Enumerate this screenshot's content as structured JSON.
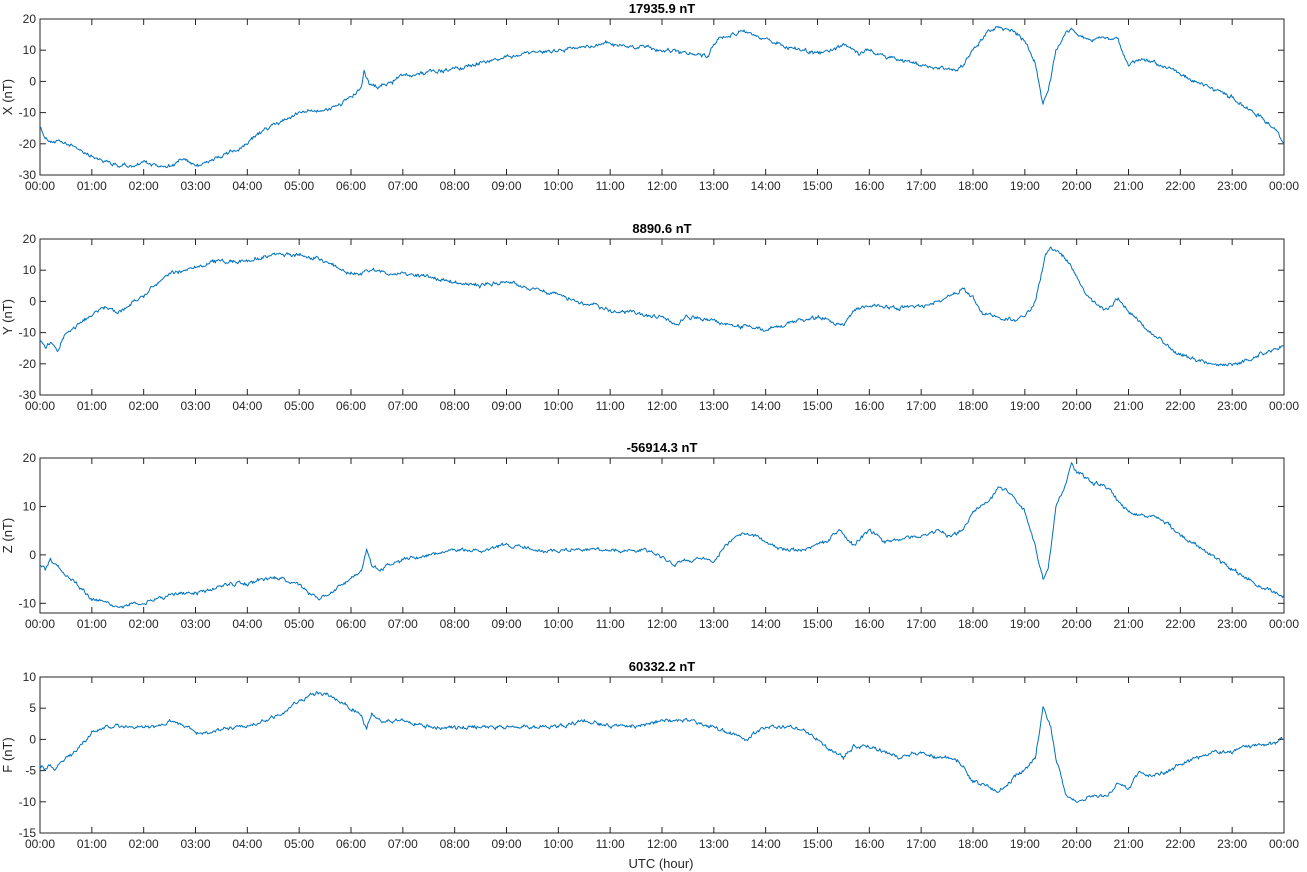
{
  "figure": {
    "xlabel": "UTC (hour)"
  },
  "chart_data": [
    {
      "type": "line",
      "title": "17935.9 nT",
      "ylabel": "X (nT)",
      "xlabel": "",
      "xlim": [
        0,
        24
      ],
      "ylim": [
        -30,
        20
      ],
      "yticks": [
        -30,
        -20,
        -10,
        0,
        10,
        20
      ],
      "xtick_labels": [
        "00:00",
        "01:00",
        "02:00",
        "03:00",
        "04:00",
        "05:00",
        "06:00",
        "07:00",
        "08:00",
        "09:00",
        "10:00",
        "11:00",
        "12:00",
        "13:00",
        "14:00",
        "15:00",
        "16:00",
        "17:00",
        "18:00",
        "19:00",
        "20:00",
        "21:00",
        "22:00",
        "23:00",
        "00:00"
      ],
      "color": "#0072BD",
      "grid": false,
      "series": [
        {
          "x": [
            0,
            0.1,
            0.2,
            0.3,
            0.5,
            0.8,
            1.0,
            1.2,
            1.5,
            1.8,
            2.0,
            2.2,
            2.5,
            2.8,
            3.0,
            3.2,
            3.5,
            3.8,
            4.0,
            4.2,
            4.5,
            4.8,
            5.0,
            5.2,
            5.5,
            5.8,
            6.0,
            6.2,
            6.25,
            6.35,
            6.5,
            6.8,
            7.0,
            7.5,
            8.0,
            8.5,
            8.8,
            9.0,
            9.2,
            9.5,
            10.0,
            10.5,
            10.8,
            11.0,
            11.3,
            11.6,
            12.0,
            12.3,
            12.6,
            12.9,
            13.0,
            13.1,
            13.3,
            13.6,
            13.8,
            14.0,
            14.3,
            14.6,
            15.0,
            15.3,
            15.5,
            15.6,
            15.8,
            16.0,
            16.3,
            16.6,
            17.0,
            17.3,
            17.6,
            17.8,
            18.0,
            18.3,
            18.5,
            18.8,
            19.0,
            19.2,
            19.35,
            19.45,
            19.6,
            19.8,
            19.9,
            20.0,
            20.3,
            20.6,
            20.8,
            21.0,
            21.2,
            21.5,
            21.8,
            22.0,
            22.3,
            22.6,
            23.0,
            23.3,
            23.6,
            23.9,
            24.0
          ],
          "y": [
            -14,
            -18,
            -19,
            -19.5,
            -20,
            -22,
            -24,
            -25,
            -27,
            -27,
            -26,
            -27,
            -27,
            -25,
            -27,
            -26,
            -24,
            -22,
            -20,
            -17,
            -14,
            -12,
            -10,
            -9,
            -9.5,
            -7,
            -5,
            -2,
            3,
            -1,
            -2,
            0,
            2,
            3,
            4,
            6,
            7,
            8,
            8,
            9,
            10,
            11,
            12,
            12,
            11,
            11,
            10,
            9,
            9,
            8,
            12,
            14,
            15,
            16,
            15,
            13,
            12,
            10,
            9,
            10,
            12,
            11,
            9,
            10,
            8,
            7,
            5,
            4,
            4,
            5,
            10,
            16,
            17,
            16,
            13,
            6,
            -7,
            -3,
            10,
            16,
            17,
            15,
            13,
            14,
            13,
            5,
            7,
            6,
            4,
            2,
            0,
            -2,
            -5,
            -9,
            -12,
            -17,
            -20
          ]
        }
      ]
    },
    {
      "type": "line",
      "title": "8890.6 nT",
      "ylabel": "Y (nT)",
      "xlabel": "",
      "xlim": [
        0,
        24
      ],
      "ylim": [
        -30,
        20
      ],
      "yticks": [
        -30,
        -20,
        -10,
        0,
        10,
        20
      ],
      "xtick_labels": [
        "00:00",
        "01:00",
        "02:00",
        "03:00",
        "04:00",
        "05:00",
        "06:00",
        "07:00",
        "08:00",
        "09:00",
        "10:00",
        "11:00",
        "12:00",
        "13:00",
        "14:00",
        "15:00",
        "16:00",
        "17:00",
        "18:00",
        "19:00",
        "20:00",
        "21:00",
        "22:00",
        "23:00",
        "00:00"
      ],
      "color": "#0072BD",
      "grid": false,
      "series": [
        {
          "x": [
            0,
            0.1,
            0.2,
            0.35,
            0.5,
            0.7,
            1.0,
            1.2,
            1.4,
            1.5,
            1.8,
            2.0,
            2.2,
            2.5,
            3.0,
            3.5,
            4.0,
            4.3,
            4.5,
            4.8,
            5.0,
            5.3,
            5.6,
            6.0,
            6.2,
            6.4,
            6.6,
            7.0,
            7.5,
            8.0,
            8.5,
            8.8,
            9.0,
            9.5,
            10.0,
            10.5,
            11.0,
            11.5,
            12.0,
            12.3,
            12.5,
            12.8,
            13.0,
            13.3,
            13.6,
            14.0,
            14.3,
            14.6,
            15.0,
            15.3,
            15.5,
            15.7,
            16.0,
            16.3,
            16.6,
            17.0,
            17.3,
            17.6,
            17.8,
            18.0,
            18.2,
            18.5,
            18.8,
            19.0,
            19.2,
            19.4,
            19.5,
            19.7,
            19.9,
            20.1,
            20.3,
            20.6,
            20.8,
            21.0,
            21.2,
            21.4,
            21.6,
            21.8,
            22.0,
            22.3,
            22.6,
            22.9,
            23.1,
            23.4,
            23.7,
            24.0
          ],
          "y": [
            -12,
            -15,
            -13,
            -16,
            -10,
            -8,
            -4,
            -2,
            -3,
            -4,
            0,
            2,
            5,
            9,
            11,
            13,
            13,
            14,
            15,
            15,
            15,
            14,
            12,
            9,
            9,
            10,
            9,
            9,
            8,
            6,
            5,
            6,
            6,
            4,
            2,
            -1,
            -3,
            -4,
            -5,
            -7,
            -5,
            -6,
            -6,
            -8,
            -8,
            -9,
            -8,
            -6,
            -5,
            -7,
            -8,
            -3,
            -1,
            -2,
            -2,
            -2,
            0,
            2,
            4,
            1,
            -4,
            -5,
            -6,
            -5,
            0,
            15,
            17,
            15,
            11,
            5,
            0,
            -3,
            1,
            -3,
            -6,
            -10,
            -12,
            -15,
            -17,
            -19,
            -20,
            -20,
            -20,
            -18,
            -16,
            -14
          ]
        }
      ]
    },
    {
      "type": "line",
      "title": "-56914.3 nT",
      "ylabel": "Z (nT)",
      "xlabel": "",
      "xlim": [
        0,
        24
      ],
      "ylim": [
        -12,
        20
      ],
      "yticks": [
        -10,
        0,
        10,
        20
      ],
      "xtick_labels": [
        "00:00",
        "01:00",
        "02:00",
        "03:00",
        "04:00",
        "05:00",
        "06:00",
        "07:00",
        "08:00",
        "09:00",
        "10:00",
        "11:00",
        "12:00",
        "13:00",
        "14:00",
        "15:00",
        "16:00",
        "17:00",
        "18:00",
        "19:00",
        "20:00",
        "21:00",
        "22:00",
        "23:00",
        "00:00"
      ],
      "color": "#0072BD",
      "grid": false,
      "series": [
        {
          "x": [
            0,
            0.1,
            0.2,
            0.4,
            0.6,
            0.8,
            1.0,
            1.3,
            1.5,
            1.8,
            2.0,
            2.3,
            2.6,
            3.0,
            3.3,
            3.6,
            4.0,
            4.3,
            4.6,
            5.0,
            5.2,
            5.4,
            5.6,
            5.8,
            6.0,
            6.2,
            6.3,
            6.4,
            6.6,
            7.0,
            7.5,
            8.0,
            8.5,
            9.0,
            9.5,
            10.0,
            10.5,
            11.0,
            11.3,
            11.6,
            12.0,
            12.2,
            12.5,
            12.8,
            13.0,
            13.2,
            13.5,
            13.8,
            14.0,
            14.3,
            14.6,
            15.0,
            15.2,
            15.4,
            15.5,
            15.7,
            15.9,
            16.0,
            16.3,
            16.6,
            17.0,
            17.3,
            17.6,
            17.8,
            18.0,
            18.3,
            18.5,
            18.8,
            19.0,
            19.2,
            19.35,
            19.45,
            19.6,
            19.8,
            19.9,
            20.0,
            20.3,
            20.6,
            20.8,
            21.0,
            21.2,
            21.5,
            21.8,
            22.0,
            22.3,
            22.6,
            23.0,
            23.3,
            23.6,
            23.9,
            24.0
          ],
          "y": [
            -2,
            -3,
            -1,
            -3,
            -5,
            -7,
            -9,
            -10,
            -11,
            -10,
            -10,
            -9,
            -8,
            -8,
            -7,
            -6,
            -6,
            -5,
            -5,
            -6,
            -8,
            -9,
            -8,
            -6,
            -5,
            -3,
            1,
            -2,
            -3,
            -1,
            0,
            1,
            1,
            2,
            1,
            1,
            1,
            1,
            1,
            1,
            0,
            -2,
            -1,
            -1,
            -2,
            2,
            4,
            4,
            3,
            1,
            1,
            2,
            3,
            5,
            4,
            2,
            4,
            5,
            3,
            3,
            4,
            5,
            4,
            5,
            9,
            11,
            14,
            12,
            9,
            2,
            -5,
            -3,
            10,
            15,
            19,
            17,
            15,
            14,
            11,
            9,
            8,
            8,
            6,
            4,
            2,
            0,
            -3,
            -5,
            -7,
            -8,
            -9
          ]
        }
      ]
    },
    {
      "type": "line",
      "title": "60332.2 nT",
      "ylabel": "F (nT)",
      "xlabel": "UTC (hour)",
      "xlim": [
        0,
        24
      ],
      "ylim": [
        -15,
        10
      ],
      "yticks": [
        -15,
        -10,
        -5,
        0,
        5,
        10
      ],
      "xtick_labels": [
        "00:00",
        "01:00",
        "02:00",
        "03:00",
        "04:00",
        "05:00",
        "06:00",
        "07:00",
        "08:00",
        "09:00",
        "10:00",
        "11:00",
        "12:00",
        "13:00",
        "14:00",
        "15:00",
        "16:00",
        "17:00",
        "18:00",
        "19:00",
        "20:00",
        "21:00",
        "22:00",
        "23:00",
        "00:00"
      ],
      "color": "#0072BD",
      "grid": false,
      "series": [
        {
          "x": [
            0,
            0.1,
            0.2,
            0.3,
            0.5,
            0.8,
            1.0,
            1.3,
            1.6,
            2.0,
            2.3,
            2.6,
            3.0,
            3.3,
            3.6,
            4.0,
            4.3,
            4.6,
            5.0,
            5.2,
            5.4,
            5.6,
            5.8,
            6.0,
            6.2,
            6.3,
            6.4,
            6.6,
            7.0,
            7.5,
            8.0,
            8.5,
            9.0,
            9.5,
            10.0,
            10.5,
            11.0,
            11.5,
            12.0,
            12.5,
            13.0,
            13.3,
            13.6,
            13.8,
            14.0,
            14.3,
            14.6,
            15.0,
            15.3,
            15.5,
            15.7,
            16.0,
            16.3,
            16.6,
            17.0,
            17.3,
            17.6,
            17.8,
            18.0,
            18.2,
            18.4,
            18.6,
            18.8,
            19.0,
            19.2,
            19.35,
            19.5,
            19.6,
            19.8,
            20.0,
            20.3,
            20.6,
            20.8,
            21.0,
            21.2,
            21.5,
            21.8,
            22.0,
            22.3,
            22.6,
            23.0,
            23.3,
            23.6,
            24.0
          ],
          "y": [
            -4,
            -5,
            -4,
            -5,
            -3,
            -1,
            1,
            2,
            2,
            2,
            2,
            3,
            1,
            1,
            2,
            2,
            3,
            4,
            6,
            7,
            7.5,
            7,
            6,
            5,
            4,
            1.5,
            4,
            3,
            3,
            2,
            2,
            2,
            2,
            2,
            2,
            3,
            2,
            2,
            3,
            3,
            2,
            1,
            0,
            1,
            2,
            2,
            2,
            0,
            -2,
            -3,
            -1,
            -1,
            -2,
            -3,
            -2,
            -3,
            -3,
            -4,
            -7,
            -7,
            -8,
            -8,
            -6,
            -5,
            -3,
            5,
            2,
            -3,
            -9,
            -10,
            -9,
            -9,
            -7,
            -8,
            -5,
            -6,
            -5,
            -4,
            -3,
            -2,
            -2,
            -1,
            -1,
            0
          ]
        }
      ]
    }
  ]
}
